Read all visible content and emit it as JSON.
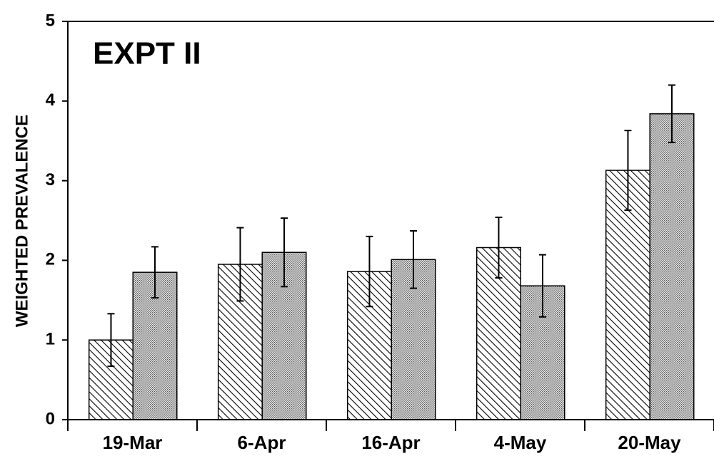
{
  "chart_data": {
    "type": "bar",
    "title": "EXPT II",
    "y_label": "WEIGHTED PREVALENCE",
    "categories": [
      "19-Mar",
      "6-Apr",
      "16-Apr",
      "4-May",
      "20-May"
    ],
    "series": [
      {
        "color": "#000000",
        "pattern": "hatch",
        "values": [
          1.0,
          1.95,
          1.86,
          2.16,
          3.13
        ],
        "errors": [
          0.33,
          0.46,
          0.44,
          0.38,
          0.5
        ]
      },
      {
        "color": "#000000",
        "pattern": "dots",
        "values": [
          1.85,
          2.1,
          2.01,
          1.68,
          3.84
        ],
        "errors": [
          0.32,
          0.43,
          0.36,
          0.39,
          0.36
        ]
      }
    ],
    "ylim": [
      0,
      5
    ],
    "yticks": [
      0,
      1,
      2,
      3,
      4,
      5
    ],
    "grid": false
  }
}
